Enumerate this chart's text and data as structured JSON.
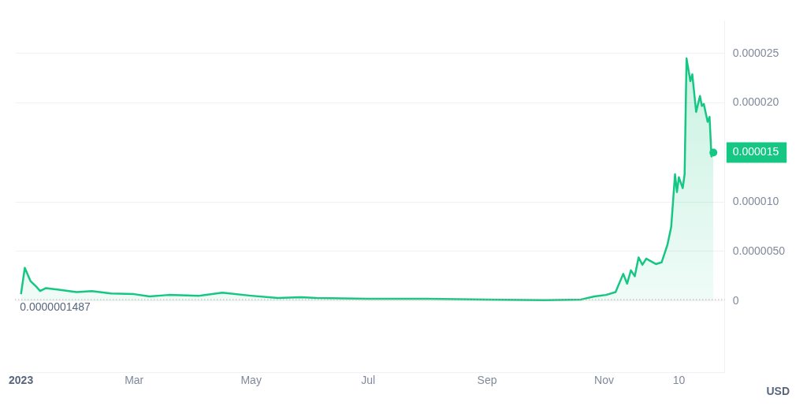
{
  "chart_data": {
    "type": "area",
    "x": [
      "2023-01-01",
      "2023-01-03",
      "2023-01-06",
      "2023-01-09",
      "2023-01-11",
      "2023-01-14",
      "2023-01-20",
      "2023-01-30",
      "2023-02-07",
      "2023-02-17",
      "2023-03-01",
      "2023-03-09",
      "2023-03-19",
      "2023-04-04",
      "2023-04-16",
      "2023-05-01",
      "2023-05-15",
      "2023-05-27",
      "2023-06-04",
      "2023-07-01",
      "2023-08-01",
      "2023-09-01",
      "2023-10-01",
      "2023-10-20",
      "2023-10-27",
      "2023-11-02",
      "2023-11-07",
      "2023-11-11",
      "2023-11-13",
      "2023-11-15",
      "2023-11-17",
      "2023-11-19",
      "2023-11-21",
      "2023-11-23",
      "2023-11-28",
      "2023-12-01",
      "2023-12-04",
      "2023-12-06",
      "2023-12-08",
      "2023-12-09",
      "2023-12-10",
      "2023-12-12",
      "2023-12-13",
      "2023-12-14",
      "2023-12-16",
      "2023-12-17",
      "2023-12-19",
      "2023-12-21",
      "2023-12-22",
      "2023-12-23",
      "2023-12-25",
      "2023-12-26",
      "2023-12-27",
      "2023-12-28"
    ],
    "series": [
      {
        "color": "#16c784",
        "values": [
          6.9e-07,
          3.35e-06,
          2e-06,
          1.45e-06,
          1e-06,
          1.3e-06,
          1.15e-06,
          9e-07,
          1e-06,
          7.6e-07,
          6.9e-07,
          4.6e-07,
          6.1e-07,
          5.3e-07,
          8.4e-07,
          5.3e-07,
          3e-07,
          3.8e-07,
          3e-07,
          2.3e-07,
          2.3e-07,
          1.5e-07,
          8e-08,
          1.5e-07,
          4.6e-07,
          6.1e-07,
          9e-07,
          2.74e-06,
          1.75e-06,
          3.1e-06,
          2.5e-06,
          4.4e-06,
          3.66e-06,
          4.27e-06,
          3.73e-06,
          3.9e-06,
          5.64e-06,
          7.47e-06,
          1.28e-05,
          1.1e-05,
          1.25e-05,
          1.14e-05,
          1.28e-05,
          2.45e-05,
          2.22e-05,
          2.29e-05,
          1.91e-05,
          2.07e-05,
          1.97e-05,
          1.99e-05,
          1.81e-05,
          1.86e-05,
          1.46e-05,
          1.51e-05
        ]
      }
    ],
    "xlim": [
      "2022-12-29",
      "2024-01-03"
    ],
    "xticks": [
      {
        "value": "2023-01-01",
        "label": "2023"
      },
      {
        "value": "2023-03-01",
        "label": "Mar"
      },
      {
        "value": "2023-05-01",
        "label": "May"
      },
      {
        "value": "2023-07-01",
        "label": "Jul"
      },
      {
        "value": "2023-09-01",
        "label": "Sep"
      },
      {
        "value": "2023-11-01",
        "label": "Nov"
      },
      {
        "value": "2023-12-10",
        "label": "10"
      }
    ],
    "ylim": [
      -7.2e-06,
      2.83e-05
    ],
    "yticks": [
      {
        "value": 0,
        "label": "0"
      },
      {
        "value": 5e-06,
        "label": "0.0000050"
      },
      {
        "value": 1e-05,
        "label": "0.000010"
      },
      {
        "value": 2e-05,
        "label": "0.000020"
      },
      {
        "value": 2.5e-05,
        "label": "0.000025"
      }
    ],
    "grid": "y",
    "marker": "none",
    "ref_lines": [
      {
        "axis": "y",
        "value": 1.487e-07,
        "label": "0.0000001487",
        "color": "#cfa3a3",
        "line_style": "dotted"
      }
    ],
    "annotations": [
      {
        "text": "0.000015",
        "x": "2023-12-28",
        "y": 1.5e-05
      },
      "USD"
    ]
  }
}
